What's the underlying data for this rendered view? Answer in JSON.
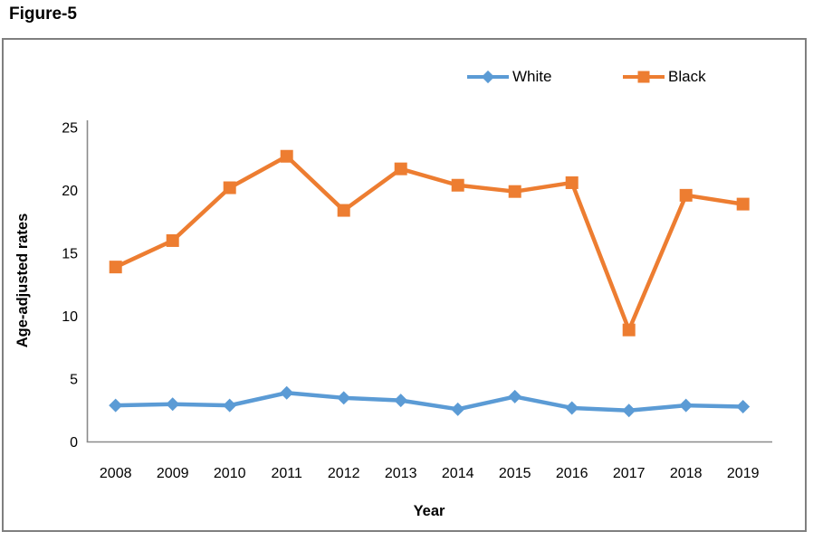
{
  "figure_label": "Figure-5",
  "chart_data": {
    "type": "line",
    "title": "",
    "xlabel": "Year",
    "ylabel": "Age-adjusted rates",
    "ylim": [
      0,
      25
    ],
    "yticks": [
      0,
      5,
      10,
      15,
      20,
      25
    ],
    "grid": "off",
    "legend_position": "top-inside-right",
    "categories": [
      "2008",
      "2009",
      "2010",
      "2011",
      "2012",
      "2013",
      "2014",
      "2015",
      "2016",
      "2017",
      "2018",
      "2019"
    ],
    "series": [
      {
        "name": "White",
        "color": "#5B9BD5",
        "marker": "diamond",
        "values": [
          2.9,
          3.0,
          2.9,
          3.9,
          3.5,
          3.3,
          2.6,
          3.6,
          2.7,
          2.5,
          2.9,
          2.8
        ]
      },
      {
        "name": "Black",
        "color": "#ED7D31",
        "marker": "square",
        "values": [
          13.9,
          16.0,
          20.2,
          22.7,
          18.4,
          21.7,
          20.4,
          19.9,
          20.6,
          8.9,
          19.6,
          18.9
        ]
      }
    ],
    "axis_color": "#8A8A8A",
    "border_color": "#7F7F7F",
    "text_color": "#000000"
  }
}
